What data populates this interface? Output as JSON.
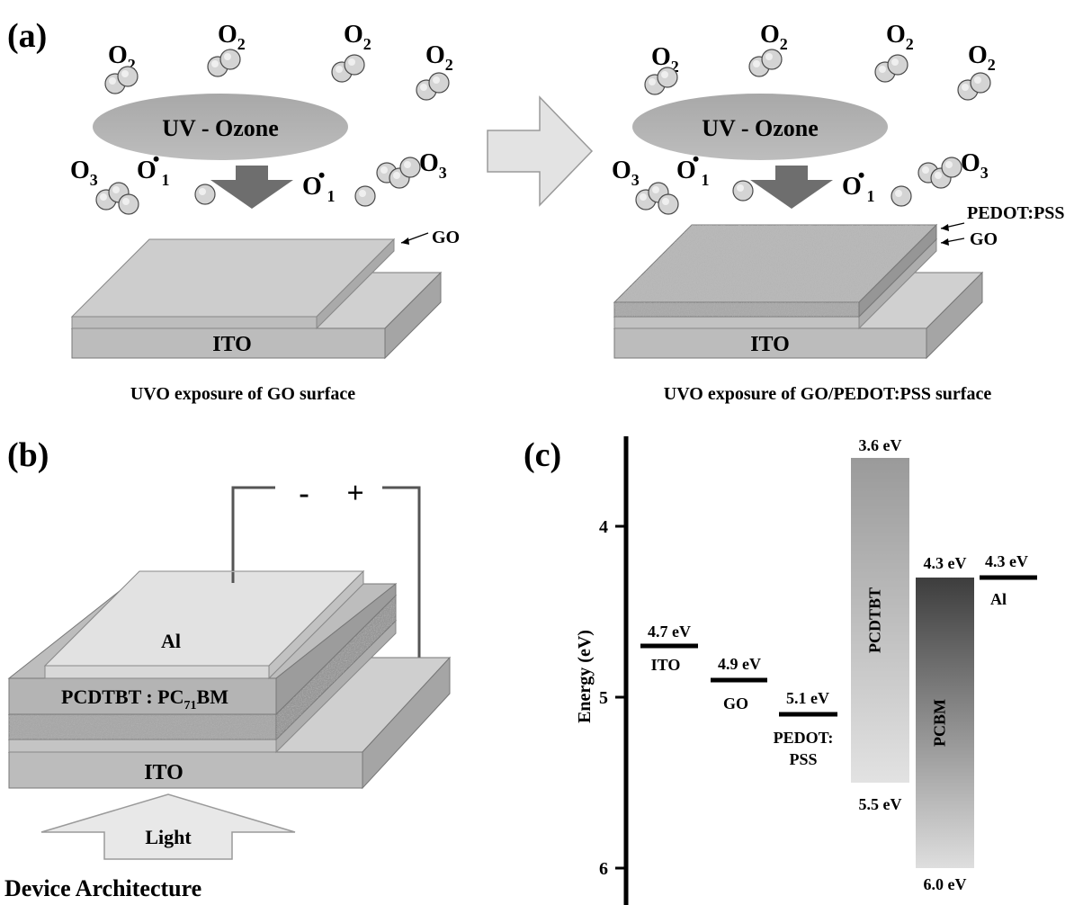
{
  "panel_a": {
    "label": "(a)",
    "molecules": {
      "o2": "O",
      "o2_sub": "2",
      "o3": "O",
      "o3_sub": "3",
      "o1": "O",
      "o1_sup": "•",
      "o1_sub": "1"
    },
    "uv_label": "UV - Ozone",
    "left": {
      "layer_go": "GO",
      "substrate": "ITO",
      "caption": "UVO exposure of GO surface"
    },
    "right": {
      "layer_pedot": "PEDOT:PSS",
      "layer_go": "GO",
      "substrate": "ITO",
      "caption": "UVO exposure of GO/PEDOT:PSS surface"
    }
  },
  "panel_b": {
    "label": "(b)",
    "polarity_minus": "-",
    "polarity_plus": "+",
    "layer_al": "Al",
    "active_prefix": "PCDTBT : PC",
    "active_sub": "71",
    "active_suffix": "BM",
    "substrate": "ITO",
    "light": "Light",
    "caption": "Device Architecture"
  },
  "panel_c": {
    "label": "(c)",
    "ylabel": "Energy (eV)",
    "yticks": [
      4,
      5,
      6
    ],
    "levels": [
      {
        "name": "ITO",
        "value": 4.7,
        "text": "4.7 eV"
      },
      {
        "name": "GO",
        "value": 4.9,
        "text": "4.9 eV"
      },
      {
        "name": "PEDOT:",
        "name2": "PSS",
        "value": 5.1,
        "text": "5.1 eV"
      },
      {
        "name": "Al",
        "value": 4.3,
        "text": "4.3 eV"
      }
    ],
    "bands": [
      {
        "name": "PCDTBT",
        "lumo": 3.6,
        "homo": 5.5,
        "lumo_text": "3.6 eV",
        "homo_text": "5.5 eV"
      },
      {
        "name": "PCBM",
        "lumo": 4.3,
        "homo": 6.0,
        "lumo_text": "4.3 eV",
        "homo_text": "6.0 eV"
      }
    ]
  },
  "chart_data": {
    "type": "bar",
    "ylabel": "Energy (eV)",
    "yticks": [
      4,
      5,
      6
    ],
    "levels": [
      {
        "material": "ITO",
        "energy": 4.7
      },
      {
        "material": "GO",
        "energy": 4.9
      },
      {
        "material": "PEDOT:PSS",
        "energy": 5.1
      },
      {
        "material": "Al",
        "energy": 4.3
      }
    ],
    "bands": [
      {
        "material": "PCDTBT",
        "lumo": 3.6,
        "homo": 5.5
      },
      {
        "material": "PCBM",
        "lumo": 4.3,
        "homo": 6.0
      }
    ]
  }
}
